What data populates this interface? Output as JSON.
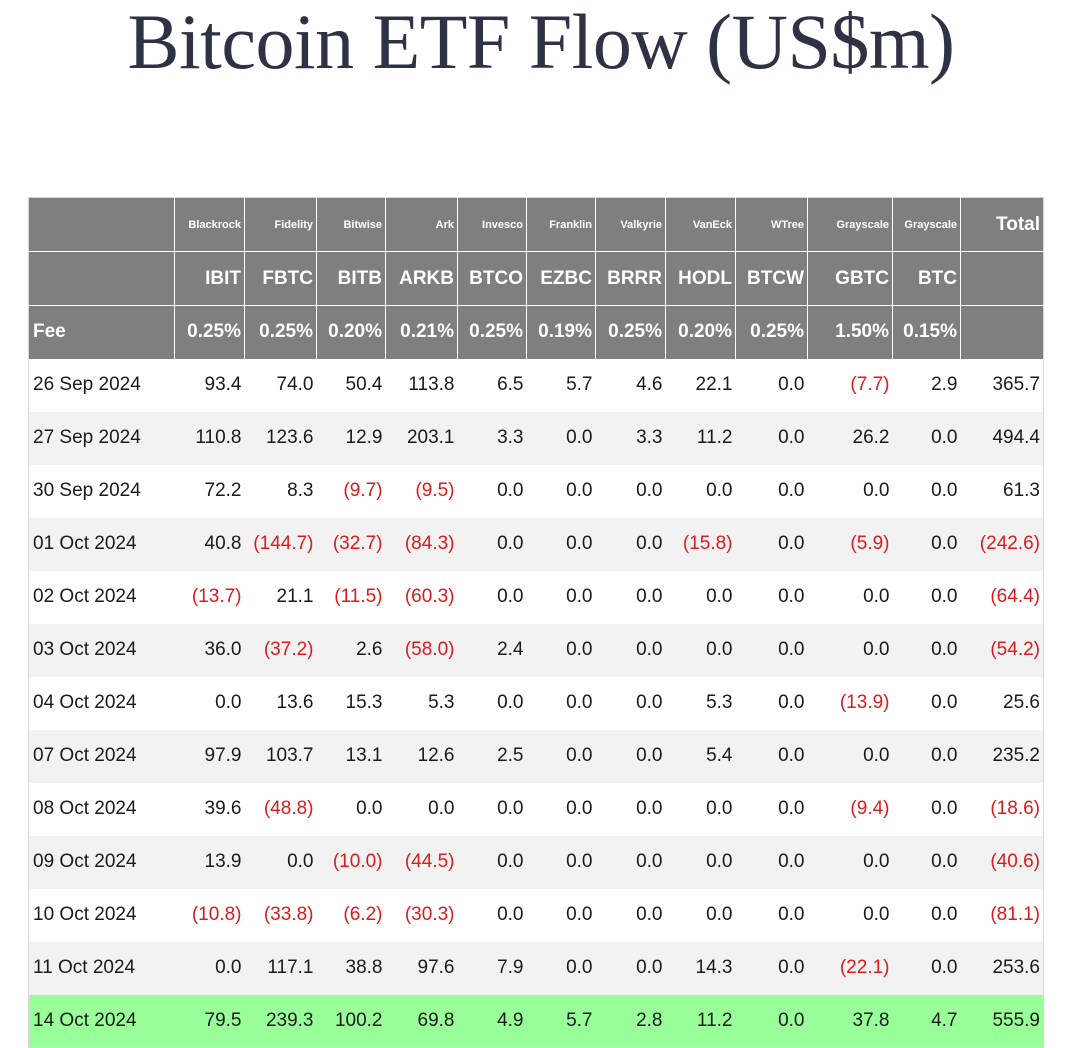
{
  "title": "Bitcoin ETF Flow (US$m)",
  "colors": {
    "header_bg": "#7f7f7f",
    "header_text": "#ffffff",
    "row_alt_bg": "#f2f2f2",
    "highlight_bg": "#99ff99",
    "negative_text": "#e0191b",
    "title_text": "#2f3244"
  },
  "header": {
    "providers": [
      "Blackrock",
      "Fidelity",
      "Bitwise",
      "Ark",
      "Invesco",
      "Franklin",
      "Valkyrie",
      "VanEck",
      "WTree",
      "Grayscale",
      "Grayscale"
    ],
    "total_label": "Total",
    "tickers": [
      "IBIT",
      "FBTC",
      "BITB",
      "ARKB",
      "BTCO",
      "EZBC",
      "BRRR",
      "HODL",
      "BTCW",
      "GBTC",
      "BTC"
    ],
    "fee_label": "Fee",
    "fees": [
      "0.25%",
      "0.25%",
      "0.20%",
      "0.21%",
      "0.25%",
      "0.19%",
      "0.25%",
      "0.20%",
      "0.25%",
      "1.50%",
      "0.15%"
    ]
  },
  "rows": [
    {
      "date": "26 Sep 2024",
      "values": [
        "93.4",
        "74.0",
        "50.4",
        "113.8",
        "6.5",
        "5.7",
        "4.6",
        "22.1",
        "0.0",
        "(7.7)",
        "2.9"
      ],
      "total": "365.7"
    },
    {
      "date": "27 Sep 2024",
      "values": [
        "110.8",
        "123.6",
        "12.9",
        "203.1",
        "3.3",
        "0.0",
        "3.3",
        "11.2",
        "0.0",
        "26.2",
        "0.0"
      ],
      "total": "494.4"
    },
    {
      "date": "30 Sep 2024",
      "values": [
        "72.2",
        "8.3",
        "(9.7)",
        "(9.5)",
        "0.0",
        "0.0",
        "0.0",
        "0.0",
        "0.0",
        "0.0",
        "0.0"
      ],
      "total": "61.3"
    },
    {
      "date": "01 Oct 2024",
      "values": [
        "40.8",
        "(144.7)",
        "(32.7)",
        "(84.3)",
        "0.0",
        "0.0",
        "0.0",
        "(15.8)",
        "0.0",
        "(5.9)",
        "0.0"
      ],
      "total": "(242.6)"
    },
    {
      "date": "02 Oct 2024",
      "values": [
        "(13.7)",
        "21.1",
        "(11.5)",
        "(60.3)",
        "0.0",
        "0.0",
        "0.0",
        "0.0",
        "0.0",
        "0.0",
        "0.0"
      ],
      "total": "(64.4)"
    },
    {
      "date": "03 Oct 2024",
      "values": [
        "36.0",
        "(37.2)",
        "2.6",
        "(58.0)",
        "2.4",
        "0.0",
        "0.0",
        "0.0",
        "0.0",
        "0.0",
        "0.0"
      ],
      "total": "(54.2)"
    },
    {
      "date": "04 Oct 2024",
      "values": [
        "0.0",
        "13.6",
        "15.3",
        "5.3",
        "0.0",
        "0.0",
        "0.0",
        "5.3",
        "0.0",
        "(13.9)",
        "0.0"
      ],
      "total": "25.6"
    },
    {
      "date": "07 Oct 2024",
      "values": [
        "97.9",
        "103.7",
        "13.1",
        "12.6",
        "2.5",
        "0.0",
        "0.0",
        "5.4",
        "0.0",
        "0.0",
        "0.0"
      ],
      "total": "235.2"
    },
    {
      "date": "08 Oct 2024",
      "values": [
        "39.6",
        "(48.8)",
        "0.0",
        "0.0",
        "0.0",
        "0.0",
        "0.0",
        "0.0",
        "0.0",
        "(9.4)",
        "0.0"
      ],
      "total": "(18.6)"
    },
    {
      "date": "09 Oct 2024",
      "values": [
        "13.9",
        "0.0",
        "(10.0)",
        "(44.5)",
        "0.0",
        "0.0",
        "0.0",
        "0.0",
        "0.0",
        "0.0",
        "0.0"
      ],
      "total": "(40.6)"
    },
    {
      "date": "10 Oct 2024",
      "values": [
        "(10.8)",
        "(33.8)",
        "(6.2)",
        "(30.3)",
        "0.0",
        "0.0",
        "0.0",
        "0.0",
        "0.0",
        "0.0",
        "0.0"
      ],
      "total": "(81.1)"
    },
    {
      "date": "11 Oct 2024",
      "values": [
        "0.0",
        "117.1",
        "38.8",
        "97.6",
        "7.9",
        "0.0",
        "0.0",
        "14.3",
        "0.0",
        "(22.1)",
        "0.0"
      ],
      "total": "253.6"
    },
    {
      "date": "14 Oct 2024",
      "values": [
        "79.5",
        "239.3",
        "100.2",
        "69.8",
        "4.9",
        "5.7",
        "2.8",
        "11.2",
        "0.0",
        "37.8",
        "4.7"
      ],
      "total": "555.9",
      "highlighted": true
    }
  ]
}
